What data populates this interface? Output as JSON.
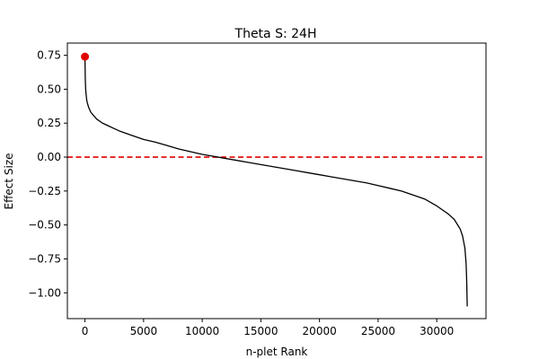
{
  "chart_data": {
    "type": "line",
    "title": "Theta S: 24H",
    "xlabel": "n-plet Rank",
    "ylabel": "Effect Size",
    "xlim": [
      -1500,
      34200
    ],
    "ylim": [
      -1.19,
      0.84
    ],
    "xticks": [
      0,
      5000,
      10000,
      15000,
      20000,
      25000,
      30000
    ],
    "xtick_labels": [
      "0",
      "5000",
      "10000",
      "15000",
      "20000",
      "25000",
      "30000"
    ],
    "yticks": [
      0.75,
      0.5,
      0.25,
      0.0,
      -0.25,
      -0.5,
      -0.75,
      -1.0
    ],
    "ytick_labels": [
      "0.75",
      "0.50",
      "0.25",
      "0.00",
      "−0.25",
      "−0.50",
      "−0.75",
      "−1.00"
    ],
    "grid": false,
    "series": [
      {
        "color": "#000000",
        "x": [
          0,
          10,
          30,
          60,
          100,
          150,
          200,
          300,
          400,
          500,
          700,
          1000,
          1500,
          2000,
          2500,
          3000,
          4000,
          5000,
          6000,
          7000,
          8000,
          9000,
          10000,
          11000,
          12000,
          13000,
          14000,
          15000,
          16000,
          17000,
          18000,
          19000,
          20000,
          21000,
          22000,
          23000,
          24000,
          25000,
          26000,
          27000,
          28000,
          29000,
          30000,
          30500,
          31000,
          31500,
          32000,
          32200,
          32400,
          32500,
          32550,
          32600
        ],
        "y": [
          0.74,
          0.67,
          0.57,
          0.5,
          0.46,
          0.42,
          0.4,
          0.37,
          0.35,
          0.33,
          0.31,
          0.28,
          0.25,
          0.23,
          0.21,
          0.19,
          0.16,
          0.13,
          0.11,
          0.085,
          0.06,
          0.04,
          0.02,
          0.005,
          -0.01,
          -0.025,
          -0.04,
          -0.055,
          -0.07,
          -0.085,
          -0.1,
          -0.115,
          -0.13,
          -0.145,
          -0.16,
          -0.175,
          -0.19,
          -0.21,
          -0.23,
          -0.25,
          -0.28,
          -0.31,
          -0.36,
          -0.39,
          -0.42,
          -0.46,
          -0.53,
          -0.58,
          -0.67,
          -0.78,
          -0.9,
          -1.1
        ]
      }
    ],
    "highlight_point": {
      "x": 0,
      "y": 0.74,
      "color": "#e00000"
    },
    "reference_line": {
      "y": 0.0,
      "color": "#e00000",
      "style": "dashed"
    }
  }
}
